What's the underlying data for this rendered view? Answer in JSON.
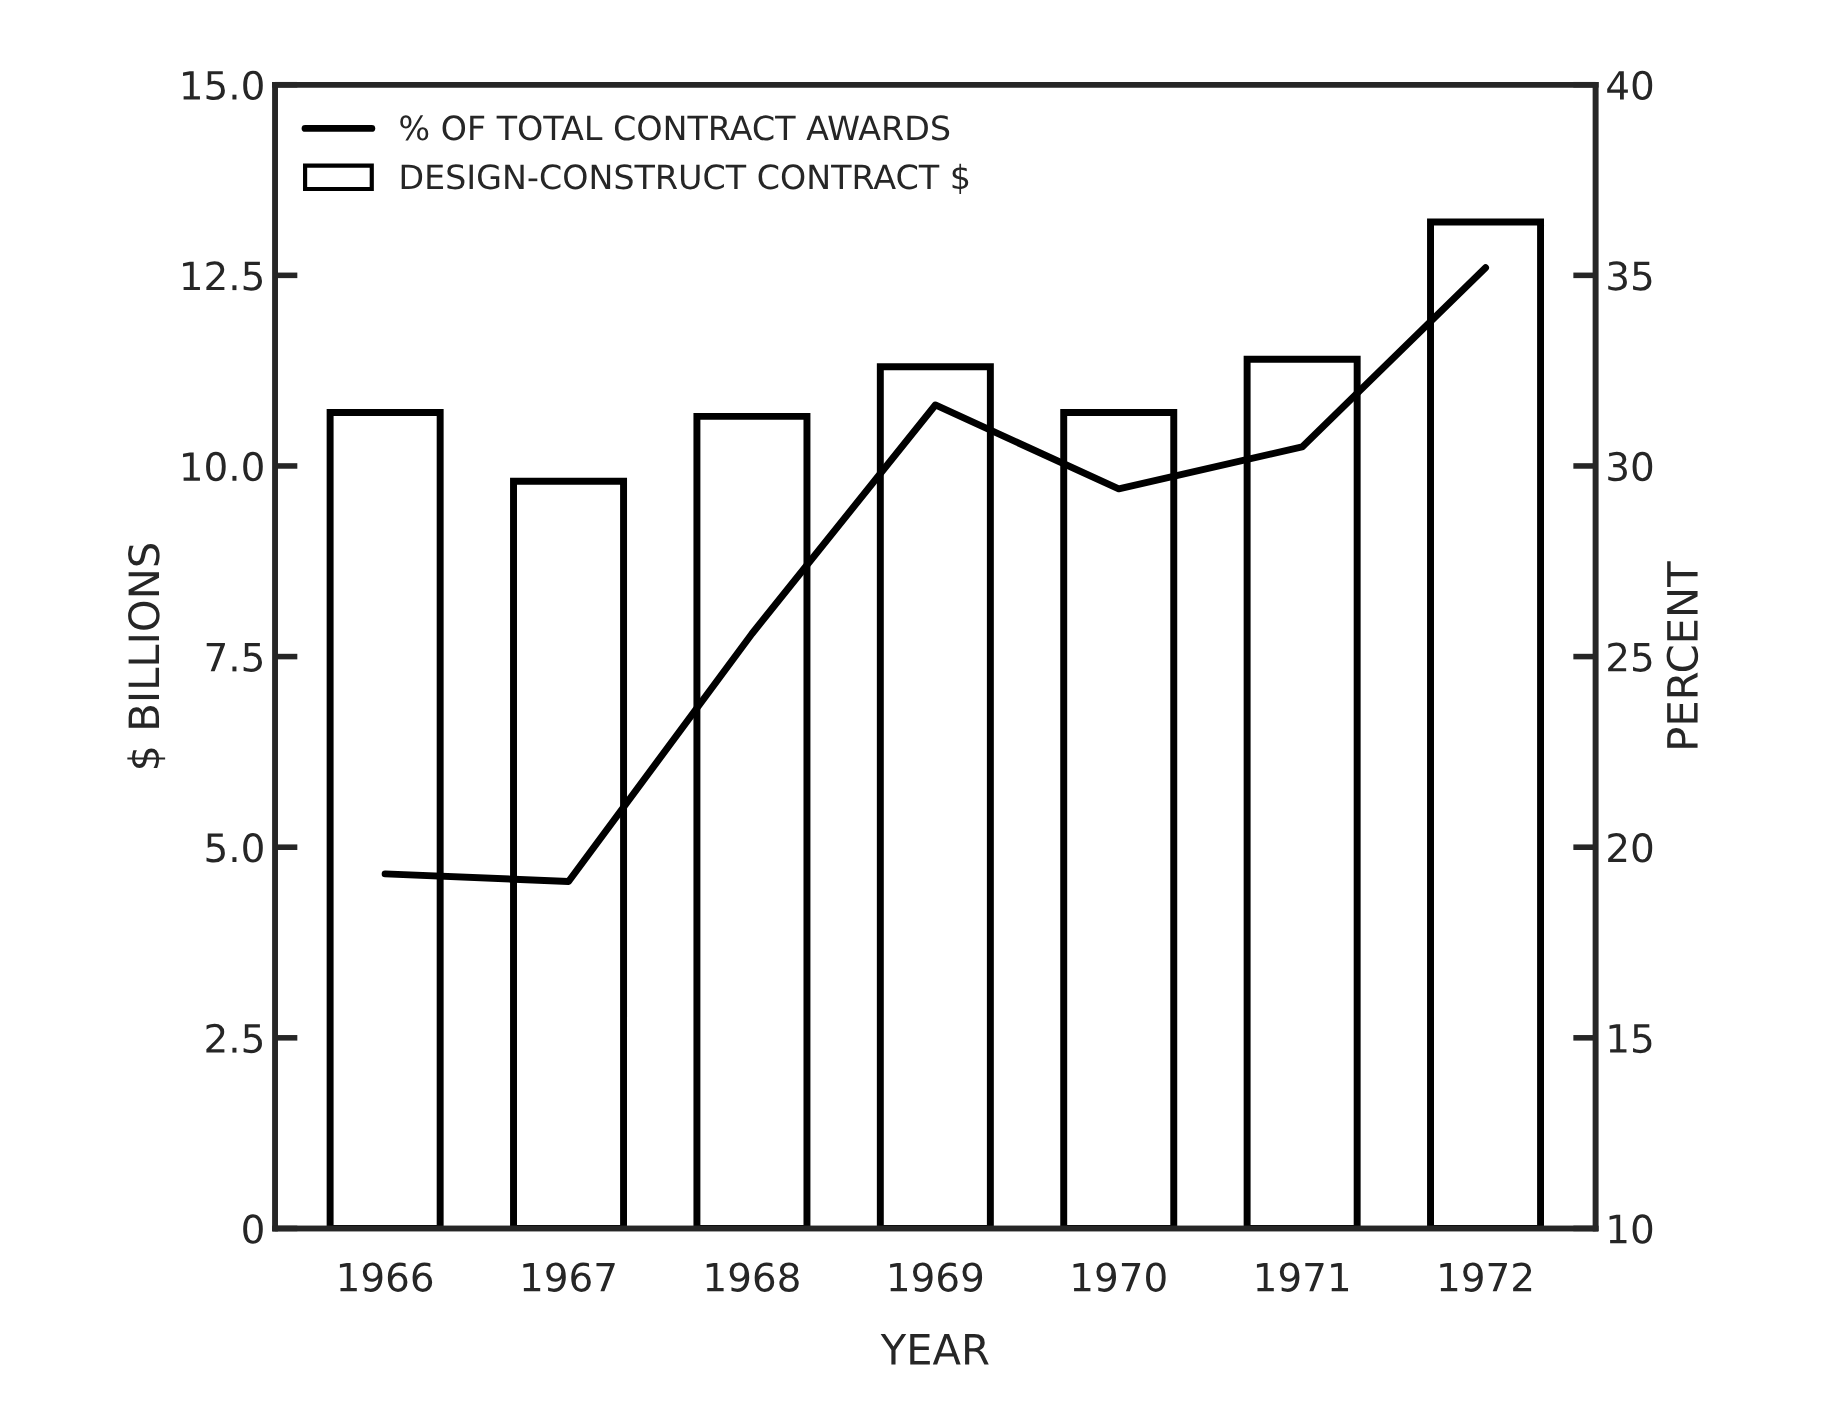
{
  "chart_data": {
    "type": "bar",
    "xlabel": "YEAR",
    "ylabel": "$ BILLIONS",
    "y2label": "PERCENT",
    "categories": [
      "1966",
      "1967",
      "1968",
      "1969",
      "1970",
      "1971",
      "1972"
    ],
    "series": [
      {
        "name": "DESIGN-CONSTRUCT CONTRACT $",
        "color": "#ffffff",
        "values": [
          10.7,
          9.8,
          10.65,
          11.3,
          10.7,
          11.4,
          13.2
        ]
      },
      {
        "name": "% OF TOTAL CONTRACT AWARDS",
        "type": "line",
        "axis": "y2",
        "color": "#000000",
        "values": [
          19.3,
          19.1,
          25.6,
          31.6,
          29.4,
          30.5,
          35.2
        ]
      }
    ],
    "ylim": [
      0,
      15
    ],
    "yticks": [
      {
        "value": 0,
        "label": "0"
      },
      2.5,
      {
        "value": 5,
        "label": "5.0"
      },
      7.5,
      {
        "value": 10,
        "label": "10.0"
      },
      12.5,
      {
        "value": 15,
        "label": "15.0"
      }
    ],
    "y2lim": [
      10,
      40
    ],
    "y2ticks": [
      10,
      15,
      20,
      25,
      30,
      35,
      40
    ],
    "grid": false,
    "legend": "top left"
  }
}
